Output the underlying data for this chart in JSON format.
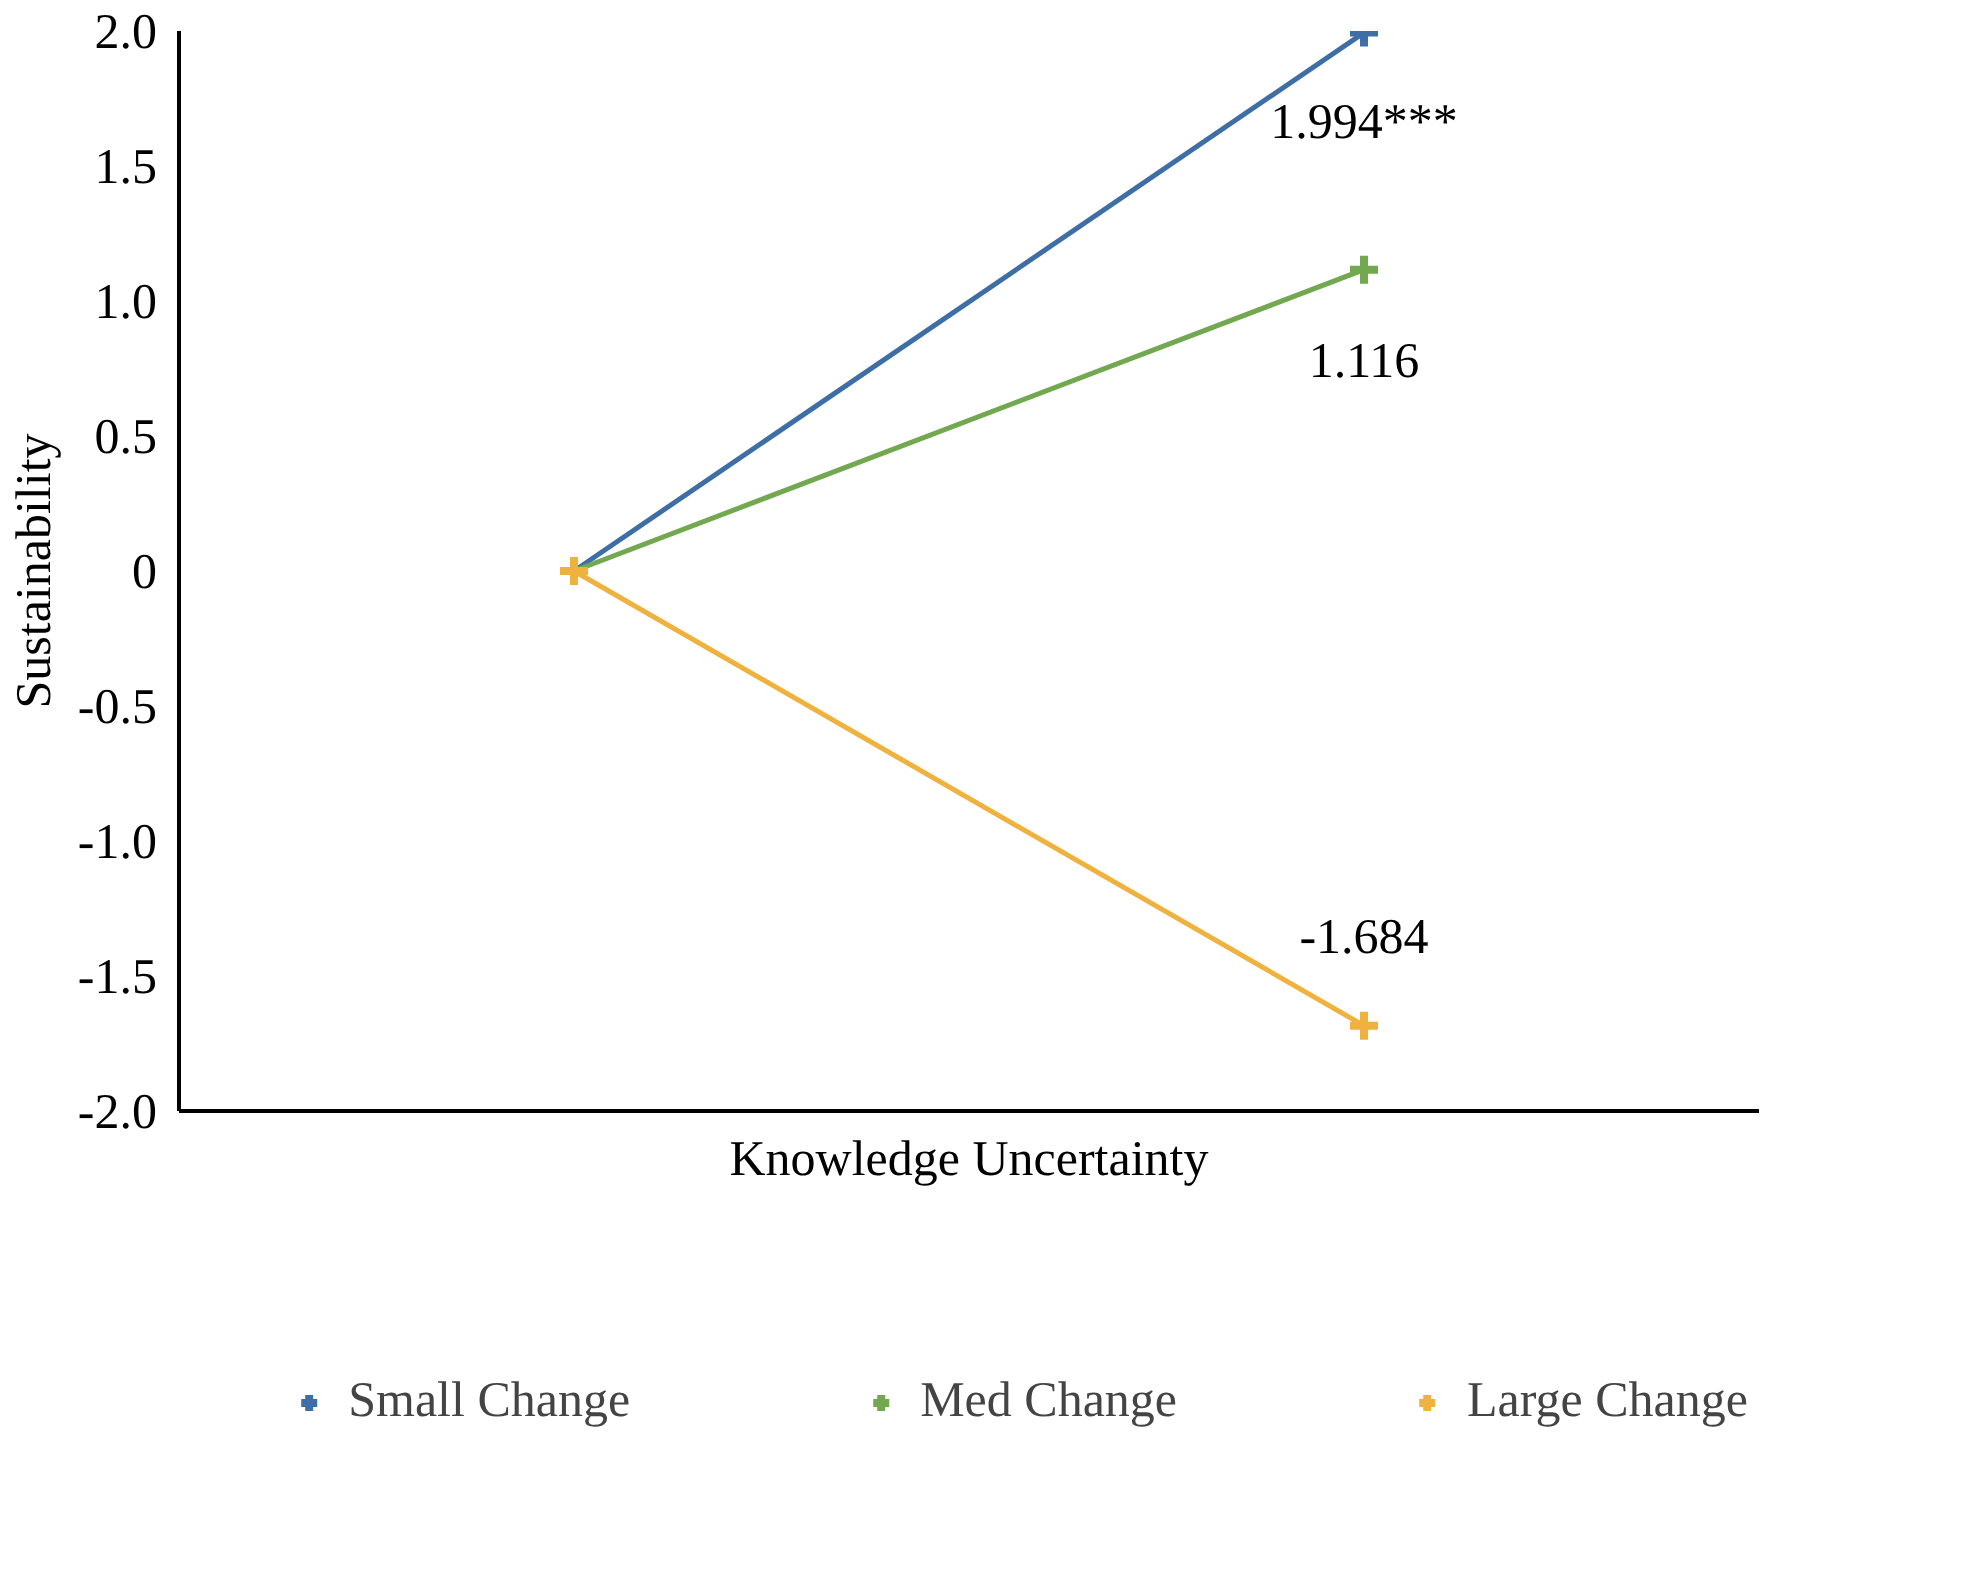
{
  "chart_data": {
    "type": "line",
    "xlabel": "Knowledge Uncertainty",
    "ylabel": "Sustainability",
    "categories": [
      null,
      null
    ],
    "series": [
      {
        "name": "Small Change",
        "color": "#3e6ea6",
        "values": [
          0,
          1.994
        ],
        "value_labels": [
          null,
          "1.994***"
        ]
      },
      {
        "name": "Med Change",
        "color": "#72a84f",
        "values": [
          0,
          1.116
        ],
        "value_labels": [
          null,
          "1.116"
        ]
      },
      {
        "name": "Large Change",
        "color": "#f0b23e",
        "values": [
          0,
          -1.684
        ],
        "value_labels": [
          null,
          "-1.684"
        ]
      }
    ],
    "ylim": [
      -2,
      2
    ],
    "yticks": [
      {
        "value": -2,
        "label": "-2.0"
      },
      {
        "value": -1.5,
        "label": "-1.5"
      },
      {
        "value": -1,
        "label": "-1.0"
      },
      {
        "value": -0.5,
        "label": "-0.5"
      },
      0,
      {
        "value": 0.5,
        "label": "0.5"
      },
      {
        "value": 1,
        "label": "1.0"
      },
      {
        "value": 1.5,
        "label": "1.5"
      },
      {
        "value": 2,
        "label": "2.0"
      }
    ],
    "tick_labels": "y",
    "grid": false,
    "legend": "bottom",
    "marker": "cross",
    "line_style": "solid"
  }
}
